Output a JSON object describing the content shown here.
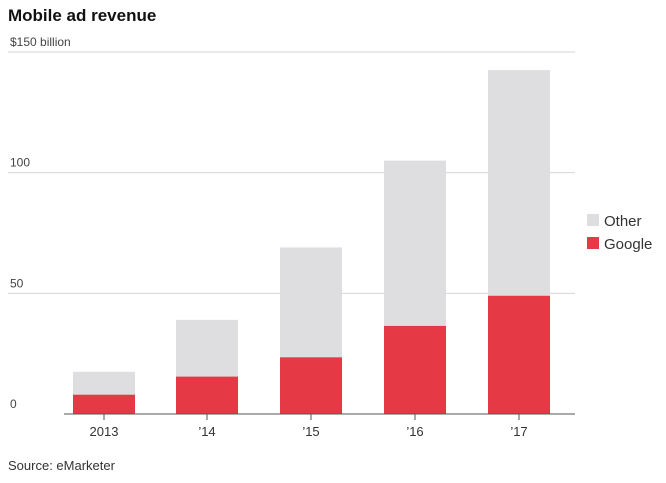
{
  "title": "Mobile ad revenue",
  "source": "Source: eMarketer",
  "colors": {
    "google": "#e63946",
    "other": "#dedee0",
    "grid": "#d6d6d6",
    "axis": "#555555"
  },
  "chart_data": {
    "type": "bar",
    "stacked": true,
    "title": "Mobile ad revenue",
    "xlabel": "",
    "ylabel": "",
    "y_unit_label": "$150 billion",
    "ylim": [
      0,
      150
    ],
    "yticks": [
      0,
      50,
      100,
      150
    ],
    "ytick_labels": [
      "0",
      "50",
      "100",
      "$150 billion"
    ],
    "categories": [
      "2013",
      "’14",
      "’15",
      "’16",
      "’17"
    ],
    "series": [
      {
        "name": "Google",
        "color": "#e63946",
        "values": [
          8,
          15.5,
          23.5,
          36.5,
          49
        ]
      },
      {
        "name": "Other",
        "color": "#dedee0",
        "values": [
          9.5,
          23.5,
          45.5,
          68.5,
          93.5
        ]
      }
    ],
    "legend": {
      "position": "right",
      "entries": [
        "Other",
        "Google"
      ]
    },
    "grid": true
  }
}
